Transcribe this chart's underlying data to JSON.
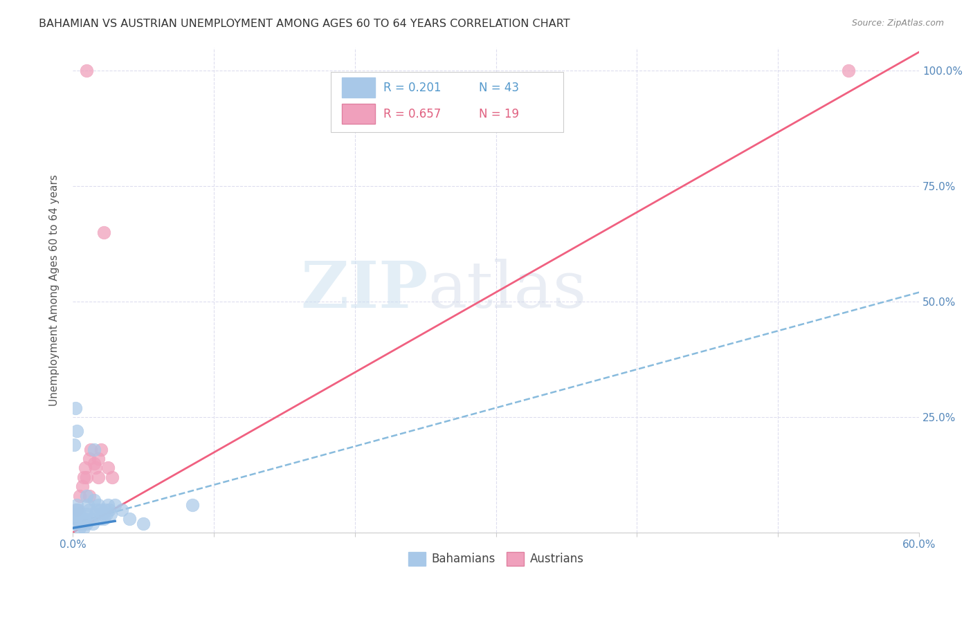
{
  "title": "BAHAMIAN VS AUSTRIAN UNEMPLOYMENT AMONG AGES 60 TO 64 YEARS CORRELATION CHART",
  "source": "Source: ZipAtlas.com",
  "ylabel": "Unemployment Among Ages 60 to 64 years",
  "xlim": [
    0.0,
    0.6
  ],
  "ylim": [
    0.0,
    1.05
  ],
  "xticks": [
    0.0,
    0.1,
    0.2,
    0.3,
    0.4,
    0.5,
    0.6
  ],
  "xtick_labels": [
    "0.0%",
    "",
    "",
    "",
    "",
    "",
    "60.0%"
  ],
  "yticks": [
    0.0,
    0.25,
    0.5,
    0.75,
    1.0
  ],
  "ytick_labels": [
    "",
    "25.0%",
    "50.0%",
    "75.0%",
    "100.0%"
  ],
  "bahamian_color": "#a8c8e8",
  "austrian_color": "#f0a0bc",
  "bahamian_line_color": "#88bbdd",
  "austrian_line_color": "#f06080",
  "R_bahamian": 0.201,
  "N_bahamian": 43,
  "R_austrian": 0.657,
  "N_austrian": 19,
  "watermark_zip": "ZIP",
  "watermark_atlas": "atlas",
  "bah_trend_x0": 0.0,
  "bah_trend_y0": 0.02,
  "bah_trend_x1": 0.6,
  "bah_trend_y1": 0.52,
  "aus_trend_x0": 0.0,
  "aus_trend_y0": 0.0,
  "aus_trend_x1": 0.6,
  "aus_trend_y1": 1.04,
  "bahamian_x": [
    0.001,
    0.002,
    0.002,
    0.003,
    0.003,
    0.004,
    0.004,
    0.005,
    0.005,
    0.005,
    0.006,
    0.007,
    0.008,
    0.009,
    0.01,
    0.01,
    0.011,
    0.012,
    0.013,
    0.014,
    0.015,
    0.016,
    0.017,
    0.018,
    0.019,
    0.02,
    0.021,
    0.022,
    0.023,
    0.024,
    0.025,
    0.026,
    0.027,
    0.03,
    0.035,
    0.04,
    0.05,
    0.001,
    0.003,
    0.015,
    0.002,
    0.085,
    0.01
  ],
  "bahamian_y": [
    0.02,
    0.03,
    0.05,
    0.04,
    0.06,
    0.03,
    0.05,
    0.01,
    0.02,
    0.04,
    0.03,
    0.02,
    0.01,
    0.03,
    0.04,
    0.08,
    0.06,
    0.05,
    0.03,
    0.02,
    0.07,
    0.04,
    0.05,
    0.06,
    0.03,
    0.05,
    0.04,
    0.03,
    0.05,
    0.04,
    0.06,
    0.05,
    0.04,
    0.06,
    0.05,
    0.03,
    0.02,
    0.19,
    0.22,
    0.18,
    0.27,
    0.06,
    0.02
  ],
  "austrian_x": [
    0.003,
    0.005,
    0.007,
    0.008,
    0.009,
    0.01,
    0.012,
    0.013,
    0.015,
    0.016,
    0.018,
    0.02,
    0.022,
    0.025,
    0.028,
    0.012,
    0.018,
    0.55,
    0.01
  ],
  "austrian_y": [
    0.05,
    0.08,
    0.1,
    0.12,
    0.14,
    0.12,
    0.16,
    0.18,
    0.15,
    0.14,
    0.16,
    0.18,
    0.65,
    0.14,
    0.12,
    0.08,
    0.12,
    1.0,
    1.0
  ]
}
